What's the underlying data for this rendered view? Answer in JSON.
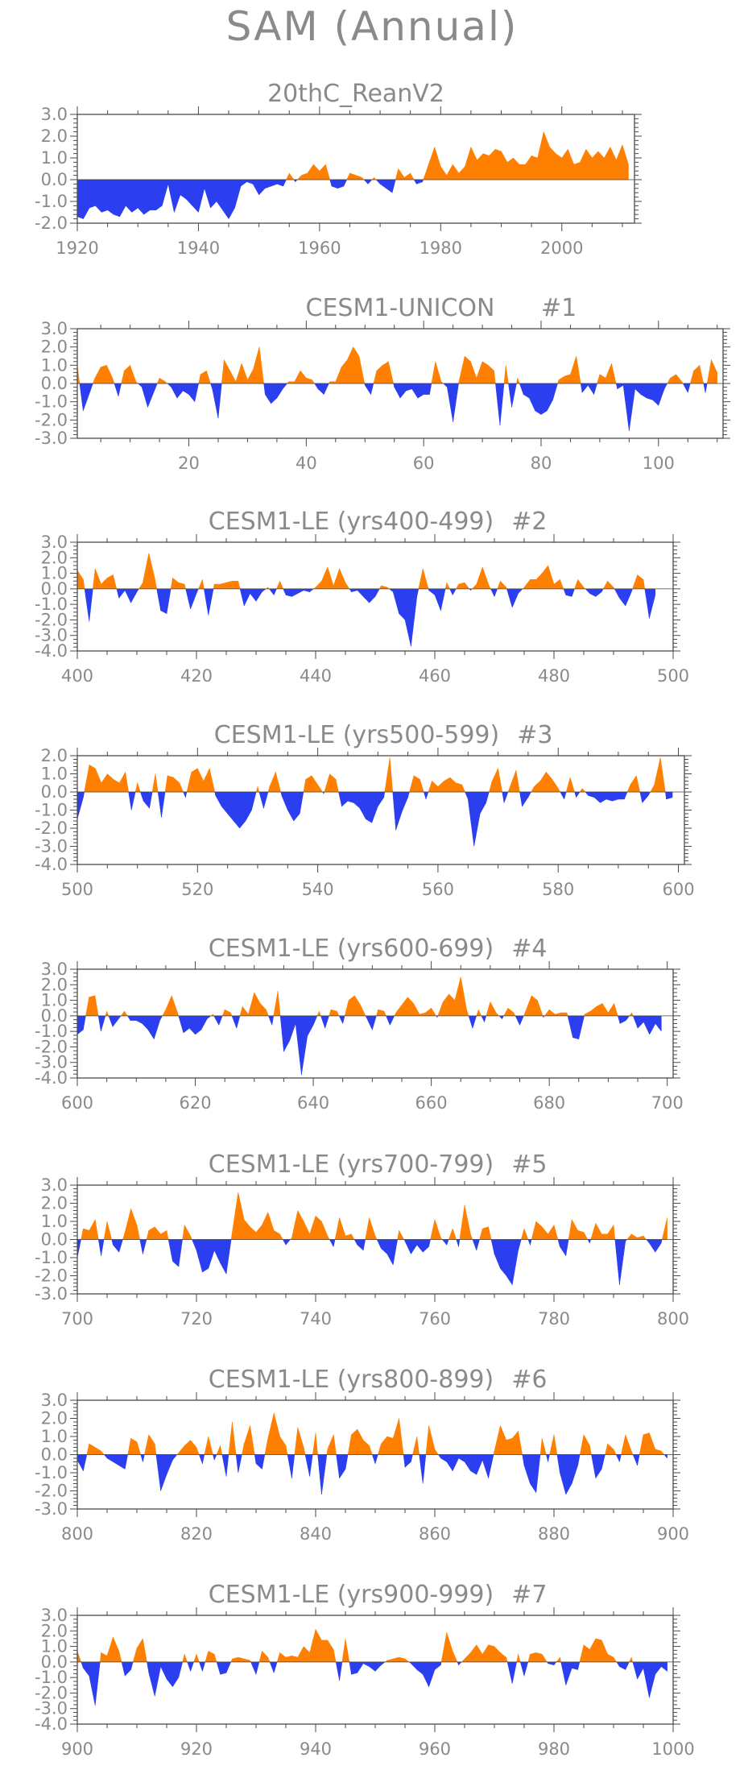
{
  "figure_title": "SAM (Annual)",
  "colors": {
    "positive": "#ff8000",
    "negative": "#2b3ff0",
    "text": "#8a8a8a",
    "axis": "#4a4a4a"
  },
  "chart_data": [
    {
      "type": "area",
      "title": "20thC_ReanV2",
      "xlim": [
        1920,
        2012
      ],
      "ylim": [
        -2.0,
        3.0
      ],
      "yticks": [
        "3.0",
        "2.0",
        "1.0",
        "0.0",
        "-1.0",
        "-2.0"
      ],
      "xticks": [
        "1920",
        "1940",
        "1960",
        "1980",
        "2000"
      ],
      "x_start": 1920,
      "values": [
        -1.7,
        -1.8,
        -1.3,
        -1.2,
        -1.5,
        -1.4,
        -1.6,
        -1.7,
        -1.2,
        -1.5,
        -1.3,
        -1.6,
        -1.4,
        -1.4,
        -1.2,
        -0.2,
        -1.5,
        -0.7,
        -0.9,
        -1.2,
        -1.5,
        -0.4,
        -1.3,
        -1.0,
        -1.4,
        -1.8,
        -1.3,
        -0.3,
        -0.1,
        -0.2,
        -0.7,
        -0.4,
        -0.3,
        -0.2,
        -0.3,
        0.3,
        -0.1,
        0.2,
        0.3,
        0.7,
        0.4,
        0.7,
        -0.3,
        -0.4,
        -0.3,
        0.3,
        0.2,
        0.1,
        -0.2,
        0.1,
        -0.2,
        -0.4,
        -0.6,
        0.5,
        0.1,
        0.3,
        -0.2,
        -0.1,
        0.7,
        1.5,
        0.6,
        0.2,
        0.7,
        0.3,
        0.6,
        1.5,
        0.9,
        1.2,
        1.1,
        1.4,
        1.3,
        0.8,
        1.0,
        0.7,
        0.7,
        1.1,
        1.0,
        2.2,
        1.5,
        1.2,
        1.0,
        1.4,
        0.7,
        0.8,
        1.4,
        1.0,
        1.3,
        1.0,
        1.5,
        0.9,
        1.6,
        0.7
      ]
    },
    {
      "type": "area",
      "title": "CESM1-UNICON",
      "run_label": "#1",
      "xlim": [
        1,
        111
      ],
      "ylim": [
        -3.0,
        3.0
      ],
      "yticks": [
        "3.0",
        "2.0",
        "1.0",
        "0.0",
        "-1.0",
        "-2.0",
        "-3.0"
      ],
      "xticks": [
        "20",
        "40",
        "60",
        "80",
        "100"
      ],
      "x_start": 1,
      "values": [
        1.0,
        -1.5,
        -0.6,
        0.3,
        0.9,
        1.0,
        0.3,
        -0.7,
        0.7,
        1.0,
        0.1,
        -0.2,
        -1.3,
        -0.5,
        0.3,
        0.1,
        -0.2,
        -0.8,
        -0.4,
        -0.6,
        -1.0,
        0.5,
        0.7,
        -0.3,
        -1.9,
        1.3,
        0.7,
        0.1,
        1.1,
        0.2,
        0.8,
        2.0,
        -0.6,
        -1.1,
        -0.8,
        -0.3,
        0.1,
        0.1,
        0.7,
        0.3,
        0.2,
        -0.3,
        -0.6,
        0.1,
        0.1,
        0.9,
        1.3,
        2.0,
        1.5,
        -0.1,
        -0.6,
        0.7,
        1.0,
        1.2,
        -0.2,
        -0.8,
        -0.4,
        -0.3,
        -0.8,
        -0.6,
        -0.6,
        1.2,
        0.1,
        -0.2,
        -2.1,
        0.1,
        1.5,
        1.2,
        0.3,
        1.2,
        1.0,
        0.7,
        -2.3,
        1.0,
        -1.3,
        0.3,
        -0.6,
        -0.8,
        -1.5,
        -1.7,
        -1.5,
        -0.9,
        0.2,
        0.4,
        0.5,
        1.5,
        -0.5,
        -0.1,
        -0.6,
        0.5,
        0.3,
        1.1,
        -0.3,
        -0.1,
        -2.6,
        -0.3,
        -0.6,
        -0.8,
        -0.9,
        -1.2,
        -0.3,
        0.3,
        0.5,
        0.1,
        -0.5,
        0.7,
        1.0,
        -0.5,
        1.3,
        0.6
      ]
    },
    {
      "type": "area",
      "title": "CESM1-LE (yrs400-499)",
      "run_label": "#2",
      "xlim": [
        400,
        500
      ],
      "ylim": [
        -4.0,
        3.0
      ],
      "yticks": [
        "3.0",
        "2.0",
        "1.0",
        "0.0",
        "-1.0",
        "-2.0",
        "-3.0",
        "-4.0"
      ],
      "xticks": [
        "400",
        "420",
        "440",
        "460",
        "480",
        "500"
      ],
      "x_start": 400,
      "values": [
        1.2,
        0.6,
        -2.1,
        1.3,
        0.3,
        0.7,
        0.9,
        -0.6,
        -0.1,
        -0.9,
        -0.2,
        0.4,
        2.3,
        0.7,
        -1.4,
        -1.6,
        0.7,
        0.4,
        0.3,
        -1.3,
        -0.3,
        0.6,
        -1.7,
        0.3,
        0.3,
        0.4,
        0.5,
        0.5,
        -1.1,
        -0.3,
        -0.8,
        -0.2,
        0.1,
        -0.4,
        0.5,
        -0.4,
        -0.5,
        -0.3,
        -0.1,
        -0.2,
        0.1,
        0.5,
        1.4,
        0.2,
        1.3,
        0.4,
        -0.2,
        -0.1,
        -0.5,
        -0.9,
        -0.5,
        0.2,
        0.1,
        -0.2,
        -1.6,
        -2.0,
        -3.7,
        -0.5,
        1.3,
        -0.1,
        -0.4,
        -1.4,
        0.4,
        -0.4,
        0.3,
        0.4,
        -0.1,
        0.3,
        1.4,
        0.3,
        -0.5,
        0.5,
        0.1,
        -1.2,
        -0.3,
        0.1,
        0.6,
        0.6,
        1.0,
        1.5,
        0.3,
        0.6,
        -0.4,
        -0.5,
        0.6,
        0.1,
        -0.3,
        -0.5,
        -0.2,
        0.5,
        0.1,
        -0.6,
        -1.1,
        -0.2,
        0.9,
        0.6,
        -1.9,
        -0.4
      ]
    },
    {
      "type": "area",
      "title": "CESM1-LE (yrs500-599)",
      "run_label": "#3",
      "xlim": [
        500,
        601
      ],
      "ylim": [
        -4.0,
        2.0
      ],
      "yticks": [
        "2.0",
        "1.0",
        "0.0",
        "-1.0",
        "-2.0",
        "-3.0",
        "-4.0"
      ],
      "xticks": [
        "500",
        "520",
        "540",
        "560",
        "580",
        "600"
      ],
      "x_start": 500,
      "values": [
        -1.5,
        -0.3,
        1.5,
        1.3,
        0.5,
        1.0,
        0.7,
        0.5,
        1.1,
        -1.0,
        0.5,
        -0.5,
        -0.9,
        1.0,
        -1.4,
        0.9,
        0.8,
        0.5,
        -0.3,
        1.1,
        1.3,
        0.6,
        1.3,
        -0.2,
        -0.8,
        -1.2,
        -1.6,
        -2.0,
        -1.6,
        -1.0,
        0.3,
        -0.9,
        0.3,
        1.1,
        -0.2,
        -1.0,
        -1.6,
        -1.2,
        0.7,
        0.9,
        0.4,
        -0.1,
        1.0,
        0.7,
        -0.8,
        -0.5,
        -0.6,
        -0.9,
        -1.5,
        -1.7,
        -0.8,
        -0.3,
        1.9,
        -2.1,
        -1.1,
        -0.3,
        0.9,
        0.7,
        -0.4,
        0.6,
        0.3,
        0.6,
        0.8,
        0.5,
        0.4,
        -0.4,
        -3.0,
        -1.2,
        -0.6,
        0.6,
        1.3,
        -0.6,
        0.3,
        1.2,
        -0.8,
        -0.3,
        0.3,
        0.6,
        1.1,
        0.7,
        0.2,
        -0.4,
        0.8,
        -0.3,
        0.2,
        -0.2,
        -0.3,
        -0.6,
        -0.4,
        -0.5,
        -0.4,
        -0.4,
        0.4,
        0.9,
        -0.6,
        -0.2,
        0.4,
        1.9,
        -0.4,
        -0.3
      ]
    },
    {
      "type": "area",
      "title": "CESM1-LE (yrs600-699)",
      "run_label": "#4",
      "xlim": [
        600,
        701
      ],
      "ylim": [
        -4.0,
        3.0
      ],
      "yticks": [
        "3.0",
        "2.0",
        "1.0",
        "0.0",
        "-1.0",
        "-2.0",
        "-3.0",
        "-4.0"
      ],
      "xticks": [
        "600",
        "620",
        "640",
        "660",
        "680",
        "700"
      ],
      "x_start": 600,
      "values": [
        -1.2,
        -0.9,
        1.2,
        1.3,
        -1.0,
        0.3,
        -0.7,
        -0.2,
        0.3,
        -0.3,
        -0.3,
        -0.5,
        -0.9,
        -1.5,
        -0.3,
        0.4,
        1.3,
        0.2,
        -1.1,
        -0.8,
        -1.2,
        -0.9,
        -0.2,
        0.1,
        -0.6,
        0.4,
        0.2,
        -0.8,
        0.6,
        0.1,
        1.5,
        0.8,
        0.4,
        -0.6,
        1.6,
        -2.3,
        -1.6,
        -0.5,
        -3.8,
        -1.3,
        -0.6,
        0.3,
        -0.8,
        0.4,
        0.3,
        -0.5,
        1.0,
        1.3,
        0.7,
        -0.1,
        -0.9,
        0.4,
        0.3,
        -0.6,
        0.2,
        0.7,
        1.2,
        0.8,
        0.1,
        0.2,
        0.5,
        -0.1,
        0.9,
        1.4,
        1.0,
        2.5,
        0.4,
        -0.8,
        0.4,
        -0.4,
        0.9,
        0.2,
        -0.2,
        0.5,
        0.2,
        -0.6,
        0.3,
        1.3,
        1.0,
        -0.1,
        0.4,
        0.1,
        0.2,
        0.2,
        -1.4,
        -1.5,
        0.1,
        0.3,
        0.6,
        0.8,
        0.2,
        0.8,
        -0.5,
        -0.3,
        0.2,
        -0.8,
        -0.4,
        -1.2,
        -0.5,
        -1.0
      ]
    },
    {
      "type": "area",
      "title": "CESM1-LE (yrs700-799)",
      "run_label": "#5",
      "xlim": [
        700,
        800
      ],
      "ylim": [
        -3.0,
        3.0
      ],
      "yticks": [
        "3.0",
        "2.0",
        "1.0",
        "0.0",
        "-1.0",
        "-2.0",
        "-3.0"
      ],
      "xticks": [
        "700",
        "720",
        "740",
        "760",
        "780",
        "800"
      ],
      "x_start": 700,
      "values": [
        -1.0,
        0.6,
        0.5,
        1.1,
        -0.9,
        1.0,
        -0.3,
        -0.7,
        0.4,
        1.7,
        0.8,
        -0.8,
        0.5,
        0.7,
        0.3,
        0.5,
        -1.2,
        -1.5,
        0.8,
        0.2,
        -0.6,
        -1.8,
        -1.6,
        -0.6,
        -1.3,
        -1.9,
        0.4,
        2.6,
        1.1,
        0.7,
        0.4,
        0.8,
        1.5,
        0.5,
        0.3,
        -0.3,
        0.1,
        1.6,
        1.0,
        0.3,
        1.3,
        1.0,
        0.2,
        -0.4,
        1.2,
        0.2,
        0.3,
        -0.3,
        -0.6,
        1.2,
        0.2,
        -0.5,
        -0.8,
        -1.4,
        0.5,
        -0.1,
        -0.8,
        -0.3,
        -0.7,
        -0.4,
        1.1,
        0.1,
        -0.3,
        0.6,
        -0.4,
        1.9,
        0.3,
        -0.6,
        0.6,
        0.7,
        -0.8,
        -1.6,
        -2.0,
        -2.5,
        -0.6,
        0.6,
        -0.3,
        1.0,
        0.7,
        0.3,
        0.8,
        -0.4,
        -0.9,
        1.1,
        0.5,
        0.4,
        -0.2,
        0.9,
        0.3,
        0.3,
        0.8,
        -2.5,
        -0.1,
        0.3,
        0.1,
        0.2,
        -0.2,
        -0.7,
        -0.2,
        1.2
      ]
    },
    {
      "type": "area",
      "title": "CESM1-LE (yrs800-899)",
      "run_label": "#6",
      "xlim": [
        800,
        900
      ],
      "ylim": [
        -3.0,
        3.0
      ],
      "yticks": [
        "3.0",
        "2.0",
        "1.0",
        "0.0",
        "-1.0",
        "-2.0",
        "-3.0"
      ],
      "xticks": [
        "800",
        "820",
        "840",
        "860",
        "880",
        "900"
      ],
      "x_start": 800,
      "values": [
        -0.3,
        -0.9,
        0.6,
        0.4,
        0.2,
        -0.2,
        -0.4,
        -0.6,
        -0.8,
        0.9,
        0.7,
        -0.4,
        1.1,
        0.6,
        -2.0,
        -1.1,
        -0.3,
        0.1,
        0.5,
        0.8,
        0.4,
        -0.5,
        1.0,
        -0.3,
        0.5,
        -1.2,
        1.8,
        -1.0,
        0.6,
        1.6,
        -0.5,
        -0.8,
        0.9,
        2.3,
        1.0,
        0.5,
        -1.3,
        1.5,
        0.4,
        -1.2,
        1.2,
        -2.2,
        0.3,
        1.1,
        -1.3,
        -0.8,
        1.1,
        1.4,
        0.8,
        0.5,
        -0.5,
        0.6,
        1.0,
        0.9,
        2.0,
        -0.7,
        -0.4,
        1.0,
        -1.6,
        1.6,
        0.3,
        -0.2,
        -0.4,
        -0.9,
        -0.2,
        -0.4,
        -0.9,
        -1.1,
        -0.3,
        -1.3,
        0.2,
        1.6,
        0.8,
        0.9,
        1.3,
        -0.6,
        -1.6,
        -2.1,
        0.9,
        -0.4,
        1.1,
        -1.0,
        -2.2,
        -1.6,
        -0.6,
        1.1,
        0.5,
        -1.3,
        -0.8,
        0.6,
        0.3,
        -0.4,
        1.1,
        0.2,
        -0.6,
        1.1,
        1.2,
        0.3,
        0.2,
        -0.2
      ]
    },
    {
      "type": "area",
      "title": "CESM1-LE (yrs900-999)",
      "run_label": "#7",
      "xlim": [
        900,
        1000
      ],
      "ylim": [
        -4.0,
        3.0
      ],
      "yticks": [
        "3.0",
        "2.0",
        "1.0",
        "0.0",
        "-1.0",
        "-2.0",
        "-3.0",
        "-4.0"
      ],
      "xticks": [
        "900",
        "920",
        "940",
        "960",
        "980",
        "1000"
      ],
      "x_start": 900,
      "values": [
        0.7,
        -0.4,
        -0.9,
        -2.8,
        0.6,
        0.4,
        1.6,
        0.7,
        -0.9,
        -0.5,
        0.9,
        1.5,
        -0.7,
        -2.2,
        -0.3,
        -1.1,
        -1.6,
        -1.0,
        0.5,
        -0.6,
        0.5,
        -0.6,
        0.7,
        0.5,
        -0.8,
        -0.7,
        0.2,
        0.3,
        0.2,
        0.1,
        -0.8,
        0.7,
        0.3,
        -0.7,
        0.6,
        0.3,
        0.4,
        0.3,
        1.0,
        0.6,
        2.1,
        1.4,
        1.4,
        0.8,
        -1.2,
        1.5,
        -0.8,
        -0.7,
        -0.1,
        -0.3,
        -0.6,
        -0.2,
        0.1,
        0.2,
        0.3,
        0.2,
        -0.1,
        -0.5,
        -0.8,
        -1.6,
        -0.5,
        -0.2,
        1.9,
        0.7,
        -0.2,
        0.2,
        0.6,
        1.1,
        0.5,
        1.1,
        1.0,
        0.6,
        0.3,
        -1.4,
        0.5,
        -0.9,
        0.5,
        0.6,
        0.5,
        -0.1,
        -0.2,
        0.3,
        -1.5,
        -0.4,
        -0.5,
        1.1,
        0.8,
        1.5,
        1.4,
        0.5,
        0.3,
        -0.3,
        -0.5,
        0.3,
        -1.1,
        -0.4,
        -2.3,
        -0.8,
        -0.3,
        -0.6
      ]
    }
  ]
}
